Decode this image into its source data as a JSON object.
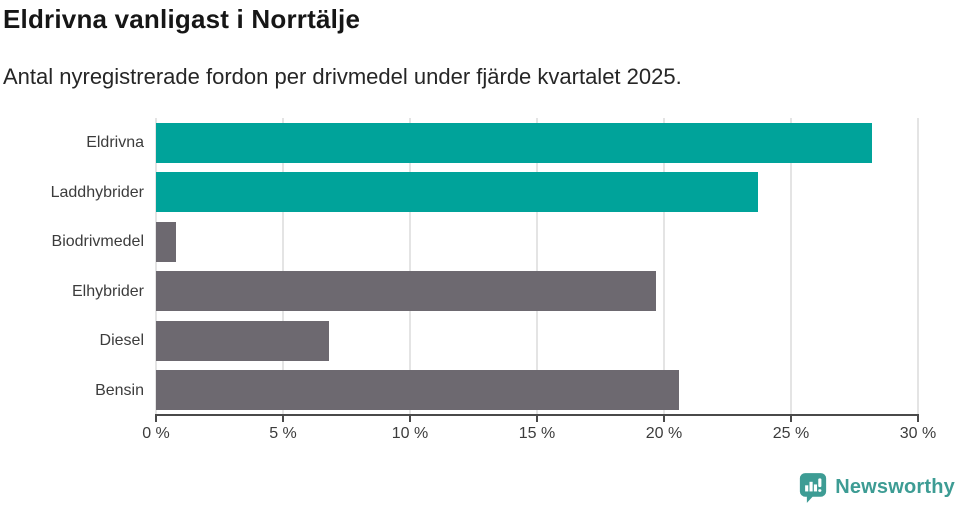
{
  "chart_data": {
    "type": "bar",
    "orientation": "horizontal",
    "title": "Eldrivna vanligast i Norrtälje",
    "subtitle": "Antal nyregistrerade fordon per drivmedel under fjärde kvartalet 2025.",
    "categories": [
      "Eldrivna",
      "Laddhybrider",
      "Biodrivmedel",
      "Elhybrider",
      "Diesel",
      "Bensin"
    ],
    "values": [
      28.2,
      23.7,
      0.8,
      19.7,
      6.8,
      20.6
    ],
    "unit": "%",
    "xlim": [
      0,
      30
    ],
    "x_ticks": [
      "0 %",
      "5 %",
      "10 %",
      "15 %",
      "20 %",
      "25 %",
      "30 %"
    ],
    "xlabel": "",
    "ylabel": "",
    "grid": "vertical",
    "legend": "none",
    "bar_colors": [
      "#00a39a",
      "#00a39a",
      "#6d6970",
      "#6d6970",
      "#6d6970",
      "#6d6970"
    ],
    "colors": {
      "highlight": "#00a39a",
      "neutral": "#6d6970",
      "gridline": "#e4e4e4",
      "axis": "#4a4a4a",
      "text": "#3c3c3c"
    }
  },
  "branding": {
    "logo_text": "Newsworthy",
    "logo_color": "#3d9c94",
    "logo_icon": "bar-chart-speech-bubble"
  }
}
